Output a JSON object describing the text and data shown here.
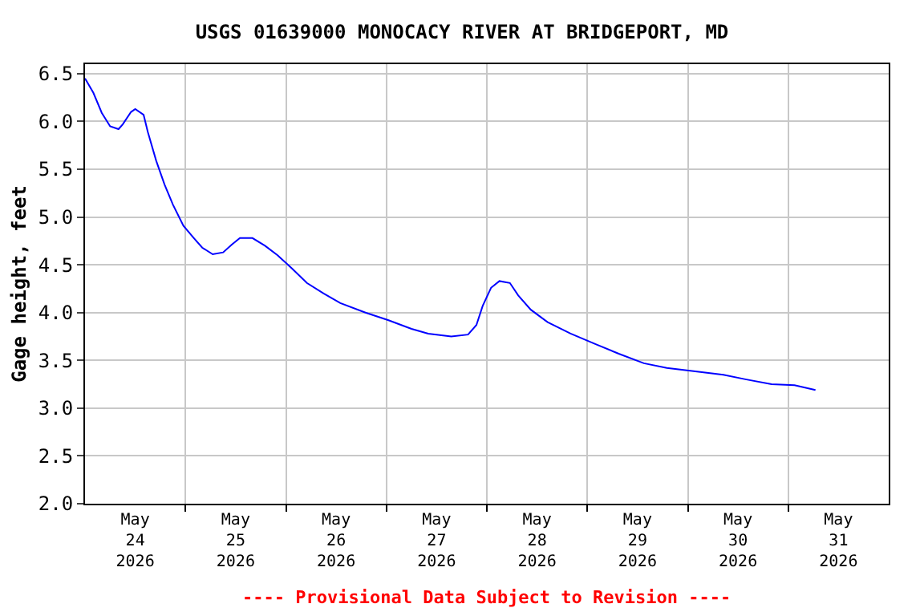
{
  "chart_data": {
    "type": "line",
    "title": "USGS 01639000 MONOCACY RIVER AT BRIDGEPORT, MD",
    "ylabel": "Gage height, feet",
    "annotations": [
      "---- Provisional Data Subject to Revision ----"
    ],
    "x": [
      "2026-05-24T00:00",
      "2026-05-24T02:00",
      "2026-05-24T04:00",
      "2026-05-24T06:00",
      "2026-05-24T08:00",
      "2026-05-24T09:00",
      "2026-05-24T11:00",
      "2026-05-24T12:00",
      "2026-05-24T14:00",
      "2026-05-24T15:00",
      "2026-05-24T17:00",
      "2026-05-24T19:00",
      "2026-05-24T21:00",
      "2026-05-24T23:30",
      "2026-05-25T02:00",
      "2026-05-25T04:00",
      "2026-05-25T06:30",
      "2026-05-25T09:00",
      "2026-05-25T11:00",
      "2026-05-25T13:00",
      "2026-05-25T16:00",
      "2026-05-25T19:00",
      "2026-05-25T22:00",
      "2026-05-26T01:30",
      "2026-05-26T05:00",
      "2026-05-26T09:00",
      "2026-05-26T13:00",
      "2026-05-26T19:00",
      "2026-05-27T00:30",
      "2026-05-27T06:00",
      "2026-05-27T10:00",
      "2026-05-27T15:30",
      "2026-05-27T19:30",
      "2026-05-27T21:30",
      "2026-05-27T23:00",
      "2026-05-28T01:00",
      "2026-05-28T03:00",
      "2026-05-28T05:30",
      "2026-05-28T07:30",
      "2026-05-28T10:30",
      "2026-05-28T14:30",
      "2026-05-28T20:00",
      "2026-05-29T02:00",
      "2026-05-29T07:30",
      "2026-05-29T13:30",
      "2026-05-29T19:00",
      "2026-05-30T01:00",
      "2026-05-30T08:30",
      "2026-05-30T14:00",
      "2026-05-30T20:00",
      "2026-05-31T01:30",
      "2026-05-31T06:30"
    ],
    "series": [
      {
        "color": "#0000ff",
        "values": [
          6.45,
          6.3,
          6.09,
          5.95,
          5.92,
          5.97,
          6.1,
          6.13,
          6.07,
          5.89,
          5.59,
          5.34,
          5.13,
          4.91,
          4.78,
          4.68,
          4.61,
          4.63,
          4.71,
          4.78,
          4.78,
          4.7,
          4.6,
          4.46,
          4.31,
          4.2,
          4.1,
          4.0,
          3.92,
          3.83,
          3.78,
          3.75,
          3.77,
          3.87,
          4.07,
          4.26,
          4.33,
          4.31,
          4.18,
          4.03,
          3.9,
          3.78,
          3.67,
          3.57,
          3.47,
          3.42,
          3.39,
          3.35,
          3.3,
          3.25,
          3.24,
          3.19
        ]
      }
    ],
    "xlim": [
      "2026-05-24",
      "2026-06-01"
    ],
    "xticks": [
      {
        "value": "2026-05-24T12:00",
        "label": "May\n24\n2026"
      },
      {
        "value": "2026-05-25T12:00",
        "label": "May\n25\n2026"
      },
      {
        "value": "2026-05-26T12:00",
        "label": "May\n26\n2026"
      },
      {
        "value": "2026-05-27T12:00",
        "label": "May\n27\n2026"
      },
      {
        "value": "2026-05-28T12:00",
        "label": "May\n28\n2026"
      },
      {
        "value": "2026-05-29T12:00",
        "label": "May\n29\n2026"
      },
      {
        "value": "2026-05-30T12:00",
        "label": "May\n30\n2026"
      },
      {
        "value": "2026-05-31T12:00",
        "label": "May\n31\n2026"
      },
      {
        "value": "2026-05-25",
        "label": null
      },
      {
        "value": "2026-05-26",
        "label": null
      },
      {
        "value": "2026-05-27",
        "label": null
      },
      {
        "value": "2026-05-28",
        "label": null
      },
      {
        "value": "2026-05-29",
        "label": null
      },
      {
        "value": "2026-05-30",
        "label": null
      },
      {
        "value": "2026-05-31",
        "label": null
      }
    ],
    "ylim": [
      2.0,
      6.6
    ],
    "yticks": [
      {
        "value": 2.0,
        "label": "2.0"
      },
      {
        "value": 2.5,
        "label": "2.5"
      },
      {
        "value": 3.0,
        "label": "3.0"
      },
      {
        "value": 3.5,
        "label": "3.5"
      },
      {
        "value": 4.0,
        "label": "4.0"
      },
      {
        "value": 4.5,
        "label": "4.5"
      },
      {
        "value": 5.0,
        "label": "5.0"
      },
      {
        "value": 5.5,
        "label": "5.5"
      },
      {
        "value": 6.0,
        "label": "6.0"
      },
      {
        "value": 6.5,
        "label": "6.5"
      }
    ],
    "grid": true,
    "legend": false,
    "line_style": "solid"
  }
}
